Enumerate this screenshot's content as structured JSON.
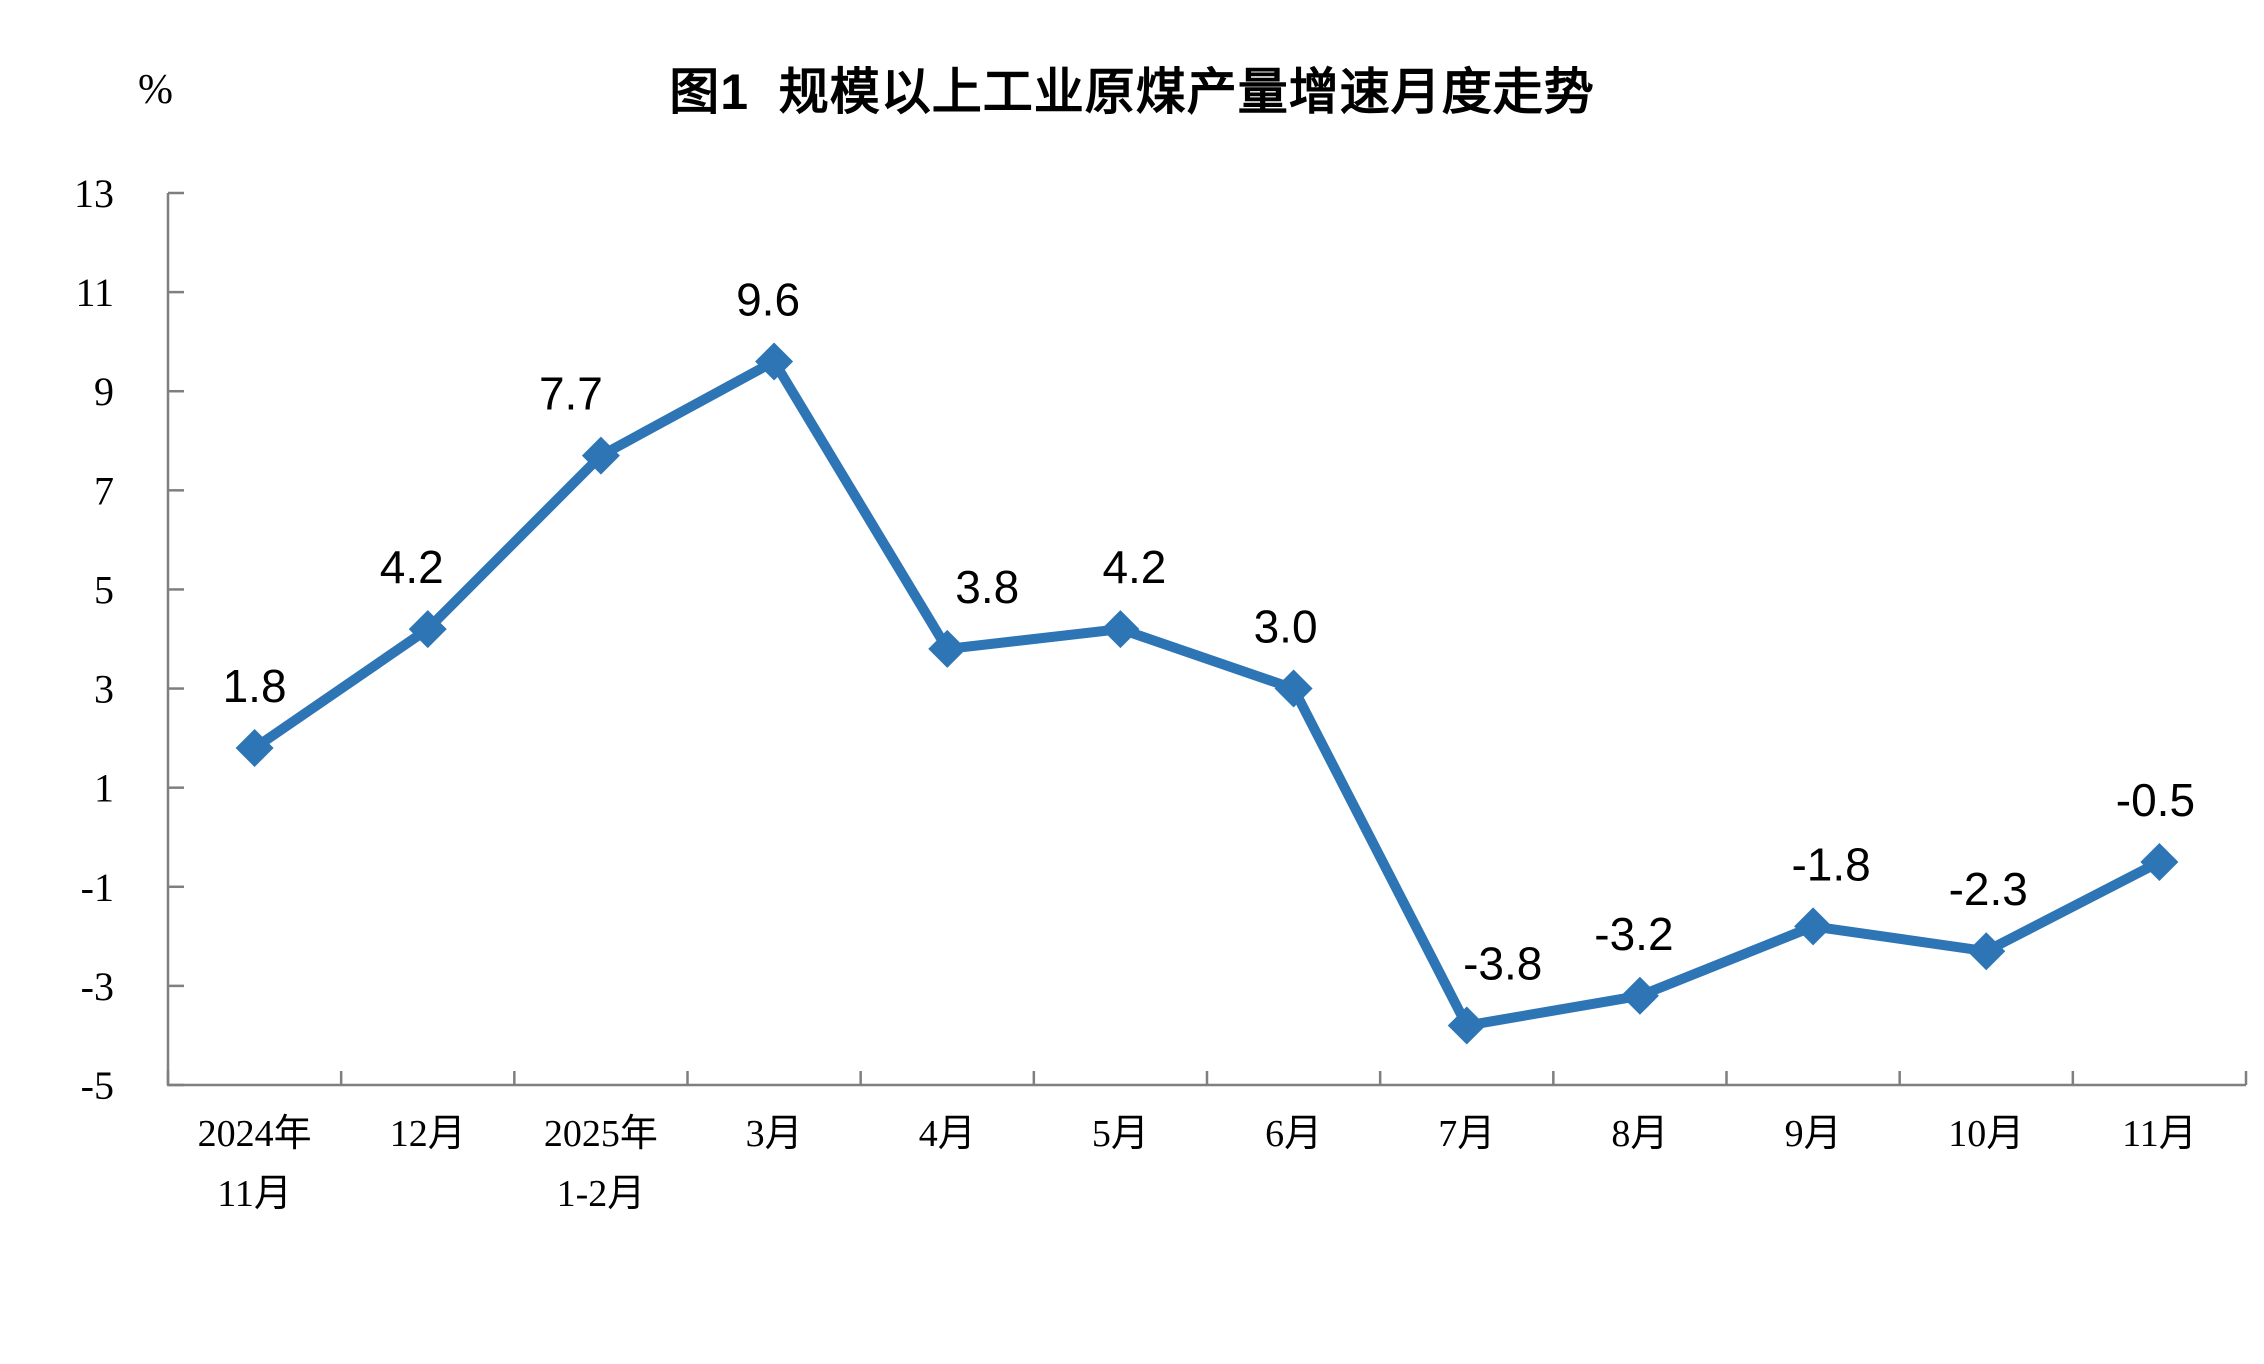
{
  "chart_data": {
    "type": "line",
    "title": "图1  规模以上工业原煤产量增速月度走势",
    "unit": "%",
    "categories": [
      "2024年\n11月",
      "12月",
      "2025年\n1-2月",
      "3月",
      "4月",
      "5月",
      "6月",
      "7月",
      "8月",
      "9月",
      "10月",
      "11月"
    ],
    "values": [
      1.8,
      4.2,
      7.7,
      9.6,
      3.8,
      4.2,
      3.0,
      -3.8,
      -3.2,
      -1.8,
      -2.3,
      -0.5
    ],
    "point_labels": [
      "1.8",
      "4.2",
      "7.7",
      "9.6",
      "3.8",
      "4.2",
      "3.0",
      "-3.8",
      "-3.2",
      "-1.8",
      "-2.3",
      "-0.5"
    ],
    "ylim": [
      -5,
      13
    ],
    "yticks": [
      13,
      11,
      9,
      7,
      5,
      3,
      1,
      -1,
      -3,
      -5
    ],
    "xlabel": "",
    "ylabel": "%",
    "grid": false,
    "legend": "none",
    "line_color": "#2E75B6",
    "marker": "diamond",
    "axis_color": "#7F7F7F",
    "label_color": "#000000",
    "label_dx": [
      0,
      -16,
      -30,
      -6,
      40,
      14,
      -8,
      36,
      -6,
      18,
      2,
      -4
    ]
  }
}
